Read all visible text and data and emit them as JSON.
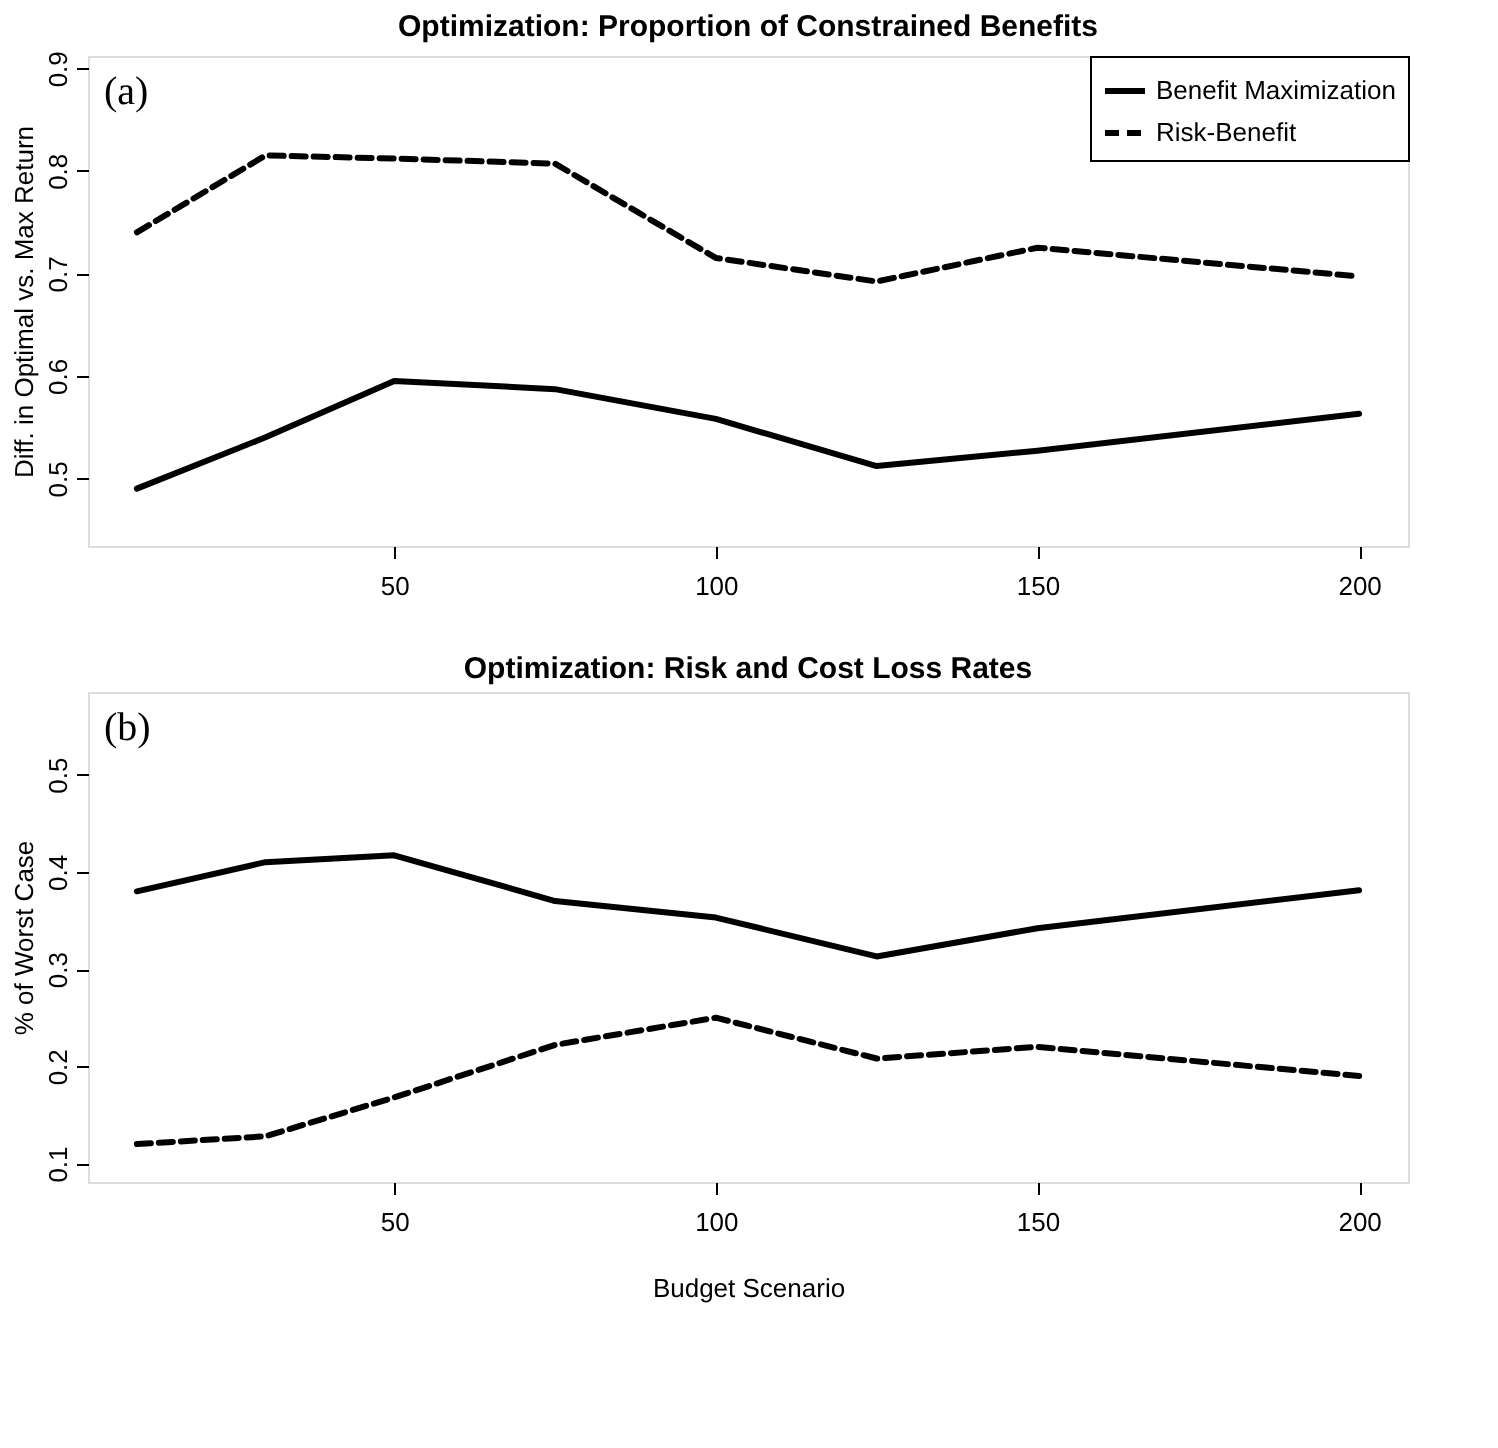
{
  "chart_data": [
    {
      "type": "line",
      "title": "Optimization: Proportion of Constrained Benefits",
      "ylabel": "Diff. in Optimal vs. Max Return",
      "x": [
        10,
        30,
        50,
        75,
        100,
        125,
        150,
        200
      ],
      "series": [
        {
          "name": "Benefit Maximization",
          "color": "#000000",
          "line_style": "solid",
          "values": [
            0.49,
            0.54,
            0.595,
            0.587,
            0.558,
            0.512,
            0.527,
            0.563
          ]
        },
        {
          "name": "Risk-Benefit",
          "color": "#000000",
          "line_style": "dashed",
          "values": [
            0.74,
            0.815,
            0.812,
            0.807,
            0.715,
            0.692,
            0.725,
            0.697
          ]
        }
      ],
      "xlim": [
        2.4,
        207.6
      ],
      "xticks": [
        50,
        100,
        150,
        200
      ],
      "ylim": [
        0.434,
        0.912
      ],
      "yticks": [
        0.5,
        0.6,
        0.7,
        0.8,
        0.9
      ],
      "legend": "top right",
      "grid": false,
      "annotations": [
        "(a)"
      ]
    },
    {
      "type": "line",
      "title": "Optimization: Risk and Cost Loss Rates",
      "ylabel": "% of Worst Case",
      "xlabel": "Budget Scenario",
      "x": [
        10,
        30,
        50,
        75,
        100,
        125,
        150,
        200
      ],
      "series": [
        {
          "name": "Benefit Maximization",
          "color": "#000000",
          "line_style": "solid",
          "values": [
            0.38,
            0.41,
            0.417,
            0.37,
            0.353,
            0.313,
            0.342,
            0.381
          ]
        },
        {
          "name": "Risk-Benefit",
          "color": "#000000",
          "line_style": "dashed",
          "values": [
            0.12,
            0.128,
            0.168,
            0.222,
            0.25,
            0.208,
            0.22,
            0.19
          ]
        }
      ],
      "xlim": [
        2.4,
        207.6
      ],
      "xticks": [
        50,
        100,
        150,
        200
      ],
      "ylim": [
        0.081,
        0.585
      ],
      "yticks": [
        0.1,
        0.2,
        0.3,
        0.4,
        0.5
      ],
      "legend": "top right",
      "grid": false,
      "annotations": [
        "(b)"
      ]
    }
  ]
}
